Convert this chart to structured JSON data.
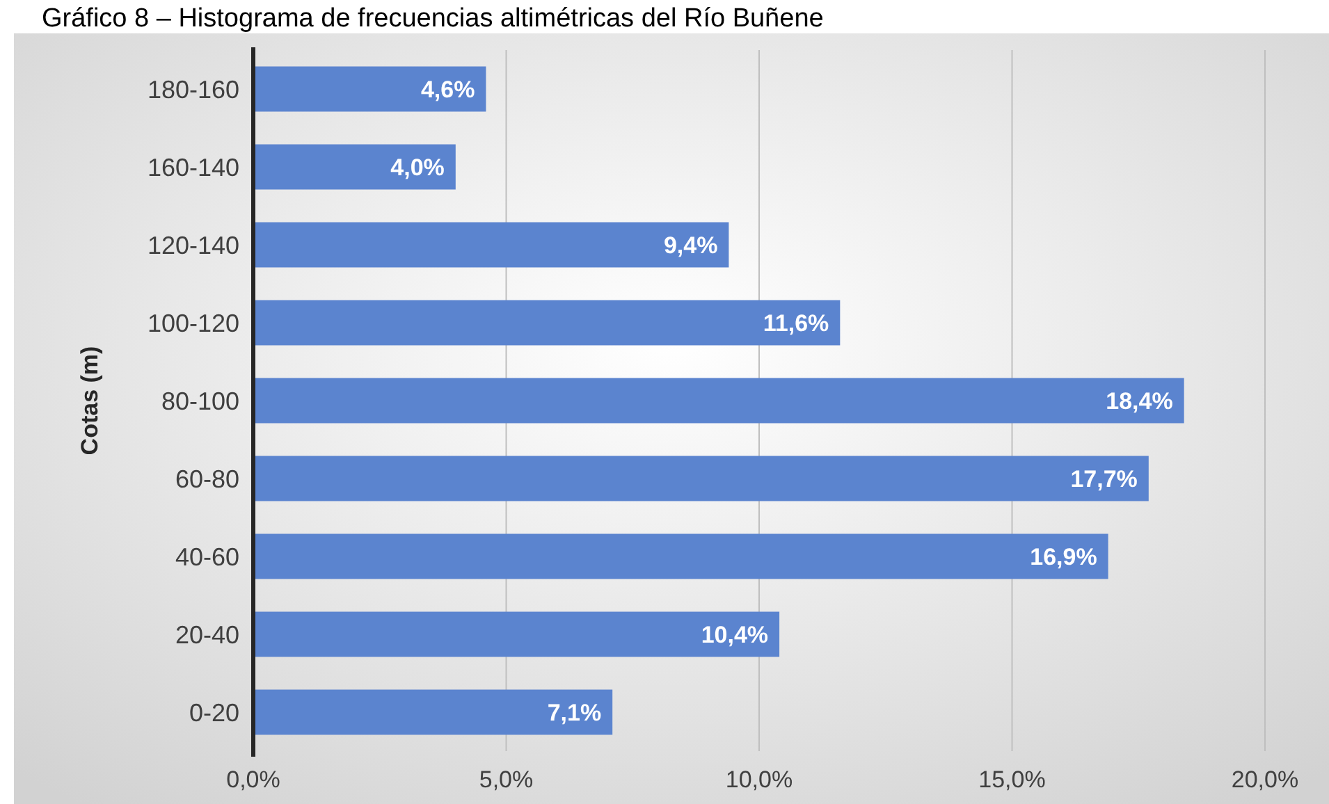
{
  "chart_data": {
    "type": "bar",
    "orientation": "horizontal",
    "title": "Gráfico 8 – Histograma de frecuencias altimétricas del Río Buñene",
    "ylabel": "Cotas (m)",
    "categories": [
      "180-160",
      "160-140",
      "120-140",
      "100-120",
      "80-100",
      "60-80",
      "40-60",
      "20-40",
      "0-20"
    ],
    "values": [
      4.6,
      4.0,
      9.4,
      11.6,
      18.4,
      17.7,
      16.9,
      10.4,
      7.1
    ],
    "value_labels": [
      "4,6%",
      "4,0%",
      "9,4%",
      "11,6%",
      "18,4%",
      "17,7%",
      "16,9%",
      "10,4%",
      "7,1%"
    ],
    "color": "#5b84cf",
    "xlim": [
      0,
      20
    ],
    "xticks": [
      {
        "value": 0,
        "label": "0,0%"
      },
      {
        "value": 5,
        "label": "5,0%"
      },
      {
        "value": 10,
        "label": "10,0%"
      },
      {
        "value": 15,
        "label": "15,0%"
      },
      {
        "value": 20,
        "label": "20,0%"
      }
    ],
    "grid": "x"
  }
}
